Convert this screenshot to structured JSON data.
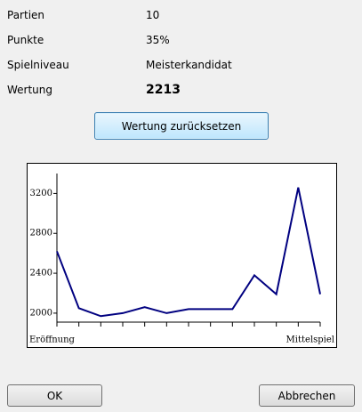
{
  "stats": [
    {
      "label": "Partien",
      "value": "10"
    },
    {
      "label": "Punkte",
      "value": "35%"
    },
    {
      "label": "Spielniveau",
      "value": "Meisterkandidat"
    },
    {
      "label": "Wertung",
      "value": "2213"
    }
  ],
  "reset_button": "Wertung zurücksetzen",
  "chart_data": {
    "type": "line",
    "xlabel_left": "Eröffnung",
    "xlabel_right": "Mittelspiel",
    "categories": [
      null,
      null,
      null,
      null,
      null,
      null,
      null,
      null,
      null,
      null,
      null,
      null,
      null
    ],
    "values": [
      2620,
      2050,
      1970,
      2000,
      2060,
      2000,
      2040,
      2040,
      2040,
      2380,
      2190,
      3260,
      2190
    ],
    "color": "#000080",
    "ylim": [
      1910,
      3400
    ],
    "yticks": [
      2000,
      2400,
      2800,
      3200
    ]
  },
  "buttons": {
    "ok": "OK",
    "cancel": "Abbrechen"
  }
}
